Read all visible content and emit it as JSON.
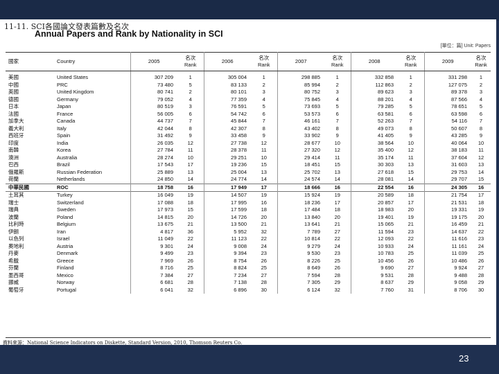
{
  "section_title": "11-11.  SCI各國論文發表篇數及名次",
  "main_title": "Annual Papers and Rank by Nationality in SCI",
  "unit_note": "[單位：篇]    Unit: Papers",
  "headers": {
    "country_zh": "國家",
    "country_en": "Country",
    "years": [
      "2005",
      "2006",
      "2007",
      "2008",
      "2009"
    ],
    "rank_zh": "名次",
    "rank_en": "Rank"
  },
  "rows": [
    {
      "zh": "美國",
      "en": "United States",
      "v": [
        "307 209",
        "1",
        "305 004",
        "1",
        "298 885",
        "1",
        "332 858",
        "1",
        "331 298",
        "1"
      ]
    },
    {
      "zh": "中國",
      "en": "PRC",
      "v": [
        "73 480",
        "5",
        "83 133",
        "2",
        "85 994",
        "2",
        "112 863",
        "2",
        "127 075",
        "2"
      ]
    },
    {
      "zh": "英國",
      "en": "United Kingdom",
      "v": [
        "80 741",
        "2",
        "80 101",
        "3",
        "80 752",
        "3",
        "89 623",
        "3",
        "89 378",
        "3"
      ]
    },
    {
      "zh": "德國",
      "en": "Germany",
      "v": [
        "79 052",
        "4",
        "77 359",
        "4",
        "75 845",
        "4",
        "88 201",
        "4",
        "87 566",
        "4"
      ]
    },
    {
      "zh": "日本",
      "en": "Japan",
      "v": [
        "80 519",
        "3",
        "76 591",
        "5",
        "73 693",
        "5",
        "79 285",
        "5",
        "78 651",
        "5"
      ]
    },
    {
      "zh": "法國",
      "en": "France",
      "v": [
        "56 005",
        "6",
        "54 742",
        "6",
        "53 573",
        "6",
        "63 581",
        "6",
        "63 598",
        "6"
      ]
    },
    {
      "zh": "加拿大",
      "en": "Canada",
      "v": [
        "44 737",
        "7",
        "45 844",
        "7",
        "46 161",
        "7",
        "52 263",
        "7",
        "54 116",
        "7"
      ]
    },
    {
      "zh": "義大利",
      "en": "Italy",
      "v": [
        "42 044",
        "8",
        "42 307",
        "8",
        "43 402",
        "8",
        "49 073",
        "8",
        "50 607",
        "8"
      ]
    },
    {
      "zh": "西班牙",
      "en": "Spain",
      "v": [
        "31 492",
        "9",
        "33 458",
        "9",
        "33 902",
        "9",
        "41 405",
        "9",
        "43 285",
        "9"
      ]
    },
    {
      "zh": "印度",
      "en": "India",
      "v": [
        "26 035",
        "12",
        "27 738",
        "12",
        "28 677",
        "10",
        "38 564",
        "10",
        "40 064",
        "10"
      ]
    },
    {
      "zh": "南韓",
      "en": "Korea",
      "v": [
        "27 784",
        "11",
        "28 378",
        "11",
        "27 320",
        "12",
        "35 400",
        "12",
        "38 183",
        "11"
      ]
    },
    {
      "zh": "澳洲",
      "en": "Australia",
      "v": [
        "28 274",
        "10",
        "29 251",
        "10",
        "29 414",
        "11",
        "35 174",
        "11",
        "37 604",
        "12"
      ]
    },
    {
      "zh": "巴西",
      "en": "Brazil",
      "v": [
        "17 543",
        "17",
        "19 236",
        "15",
        "18 451",
        "15",
        "30 303",
        "13",
        "31 603",
        "13"
      ]
    },
    {
      "zh": "俄羅斯",
      "en": "Russian Federation",
      "v": [
        "25 889",
        "13",
        "25 004",
        "13",
        "25 702",
        "13",
        "27 618",
        "15",
        "29 753",
        "14"
      ]
    },
    {
      "zh": "荷蘭",
      "en": "Netherlands",
      "v": [
        "24 850",
        "14",
        "24 774",
        "14",
        "24 574",
        "14",
        "28 081",
        "14",
        "29 707",
        "15"
      ]
    },
    {
      "zh": "中華民國",
      "en": "ROC",
      "hl": true,
      "v": [
        "18 758",
        "16",
        "17 949",
        "17",
        "18 666",
        "16",
        "22 554",
        "16",
        "24 305",
        "16"
      ]
    },
    {
      "zh": "土耳其",
      "en": "Turkey",
      "v": [
        "16 049",
        "19",
        "14 507",
        "19",
        "15 924",
        "19",
        "20 589",
        "18",
        "21 754",
        "17"
      ]
    },
    {
      "zh": "瑞士",
      "en": "Switzerland",
      "v": [
        "17 088",
        "18",
        "17 995",
        "16",
        "18 236",
        "17",
        "20 857",
        "17",
        "21 531",
        "18"
      ]
    },
    {
      "zh": "瑞典",
      "en": "Sweden",
      "v": [
        "17 973",
        "15",
        "17 599",
        "18",
        "17 484",
        "18",
        "18 983",
        "20",
        "19 331",
        "19"
      ]
    },
    {
      "zh": "波蘭",
      "en": "Poland",
      "v": [
        "14 815",
        "20",
        "14 726",
        "20",
        "13 840",
        "20",
        "19 401",
        "19",
        "19 175",
        "20"
      ]
    },
    {
      "zh": "比利時",
      "en": "Belgium",
      "v": [
        "13 675",
        "21",
        "13 500",
        "21",
        "13 641",
        "21",
        "15 065",
        "21",
        "16 459",
        "21"
      ]
    },
    {
      "zh": "伊朗",
      "en": "Iran",
      "v": [
        "4 817",
        "36",
        "5 952",
        "32",
        "7 789",
        "27",
        "11 594",
        "23",
        "14 637",
        "22"
      ]
    },
    {
      "zh": "以色列",
      "en": "Israel",
      "v": [
        "11 049",
        "22",
        "11 123",
        "22",
        "10 814",
        "22",
        "12 093",
        "22",
        "11 616",
        "23"
      ]
    },
    {
      "zh": "奧地利",
      "en": "Austria",
      "v": [
        "9 301",
        "24",
        "9 008",
        "24",
        "9 279",
        "24",
        "10 933",
        "24",
        "11 161",
        "24"
      ]
    },
    {
      "zh": "丹麥",
      "en": "Denmark",
      "v": [
        "9 499",
        "23",
        "9 394",
        "23",
        "9 530",
        "23",
        "10 783",
        "25",
        "11 039",
        "25"
      ]
    },
    {
      "zh": "希臘",
      "en": "Greece",
      "v": [
        "7 969",
        "26",
        "8 754",
        "26",
        "8 226",
        "25",
        "10 456",
        "26",
        "10 486",
        "26"
      ]
    },
    {
      "zh": "芬蘭",
      "en": "Finland",
      "v": [
        "8 716",
        "25",
        "8 824",
        "25",
        "8 649",
        "26",
        "9 690",
        "27",
        "9 924",
        "27"
      ]
    },
    {
      "zh": "墨西哥",
      "en": "Mexico",
      "v": [
        "7 384",
        "27",
        "7 234",
        "27",
        "7 594",
        "28",
        "9 531",
        "28",
        "9 488",
        "28"
      ]
    },
    {
      "zh": "挪威",
      "en": "Norway",
      "v": [
        "6 681",
        "28",
        "7 138",
        "28",
        "7 305",
        "29",
        "8 637",
        "29",
        "9 058",
        "29"
      ]
    },
    {
      "zh": "葡萄牙",
      "en": "Portugal",
      "v": [
        "6 041",
        "32",
        "6 896",
        "30",
        "6 124",
        "32",
        "7 760",
        "31",
        "8 706",
        "30"
      ]
    }
  ],
  "source": "資料來源：National Science Indicators on Diskette, Standard Version, 2010, Thomson Reuters Co.",
  "page_number": "23"
}
